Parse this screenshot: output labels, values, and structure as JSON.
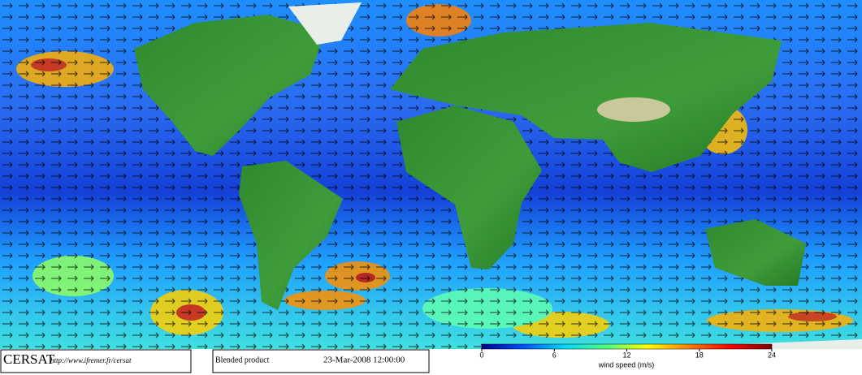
{
  "footer": {
    "logo": "CERSAT",
    "url": "http://www.ifremer.fr/cersat",
    "product": "Blended product",
    "date": "23-Mar-2008 12:00:00"
  },
  "colorbar": {
    "label": "wind speed (m/s)",
    "range": [
      0,
      24
    ],
    "ticks": [
      0,
      6,
      12,
      18,
      24
    ],
    "colors": [
      "#00008b",
      "#0050ff",
      "#00d8ff",
      "#50ff80",
      "#ffff00",
      "#ff8000",
      "#ff0000",
      "#7a0000"
    ]
  }
}
